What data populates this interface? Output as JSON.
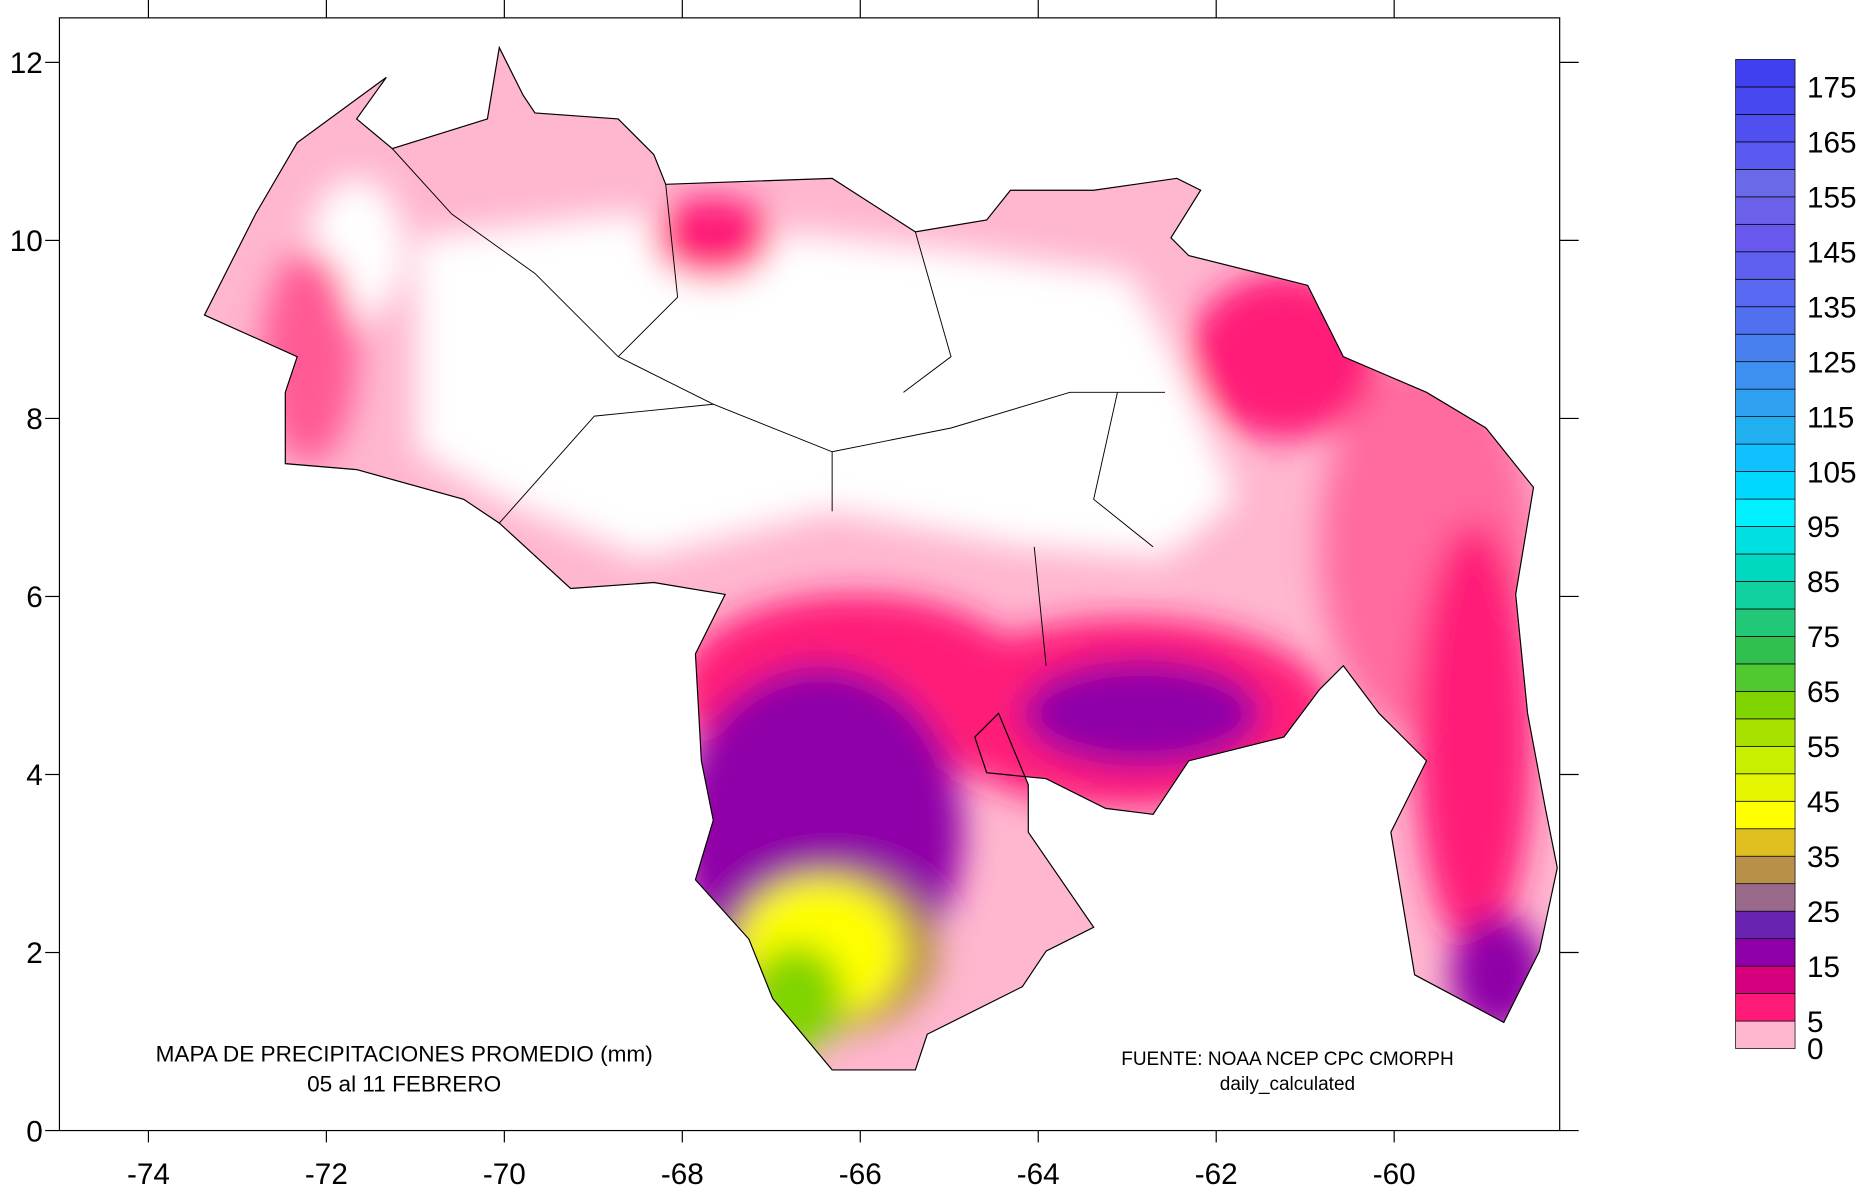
{
  "chart_data": {
    "type": "contour_map",
    "title": "MAPA DE PRECIPITACIONES PROMEDIO (mm)",
    "subtitle": "05 al 11 FEBRERO",
    "source": "FUENTE: NOAA NCEP CPC CMORPH",
    "source_note": "daily_calculated",
    "xlim": [
      -75,
      -58.14
    ],
    "ylim": [
      0,
      12.5
    ],
    "xticks": [
      -74,
      -72,
      -70,
      -68,
      -66,
      -64,
      -62,
      -60
    ],
    "yticks": [
      0,
      2,
      4,
      6,
      8,
      10,
      12
    ],
    "colorbar": {
      "lim": [
        0,
        180
      ],
      "bins": [
        0,
        5,
        10,
        15,
        20,
        25,
        30,
        35,
        40,
        45,
        50,
        55,
        60,
        65,
        70,
        75,
        80,
        85,
        90,
        95,
        100,
        105,
        110,
        115,
        120,
        125,
        130,
        135,
        140,
        145,
        150,
        155,
        160,
        165,
        170,
        175,
        180
      ],
      "colors": [
        "#ffb6cf",
        "#ff1a78",
        "#d6007f",
        "#8f00a8",
        "#6a22b0",
        "#9a6a8a",
        "#b8904a",
        "#e0c020",
        "#ffff00",
        "#e6f500",
        "#c8ee00",
        "#a8e000",
        "#80d400",
        "#50c830",
        "#30c050",
        "#20c878",
        "#10d0a0",
        "#00d8c0",
        "#00e0e0",
        "#00f0ff",
        "#00d8ff",
        "#10c0ff",
        "#20b0f0",
        "#30a0f0",
        "#3c90f0",
        "#4880f0",
        "#5070f0",
        "#5868f0",
        "#6060f0",
        "#6858ee",
        "#6a60ea",
        "#6a6ae8",
        "#5a5af0",
        "#5050f0",
        "#4848f0",
        "#4040f0"
      ],
      "ticks": [
        0,
        5,
        15,
        25,
        35,
        45,
        55,
        65,
        75,
        85,
        95,
        105,
        115,
        125,
        135,
        145,
        155,
        165,
        175
      ]
    }
  }
}
